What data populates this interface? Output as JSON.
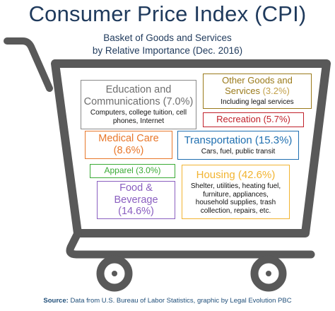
{
  "title": "Consumer Price Index (CPI)",
  "subtitle_line1": "Basket of Goods and Services",
  "subtitle_line2": "by Relative Importance (Dec. 2016)",
  "categories": {
    "education": {
      "line1": "Education and",
      "line2": "Communications (7.0%)",
      "desc1": "Computers, college tuition, cell",
      "desc2": "phones, Internet",
      "color": "#8a8a8a",
      "share": 7.0
    },
    "other": {
      "line1": "Other Goods and",
      "line2": "Services",
      "pct": "(3.2%)",
      "desc": "Including legal services",
      "color": "#9a7a1a",
      "share": 3.2
    },
    "recreation": {
      "label": "Recreation (5.7%)",
      "color": "#c0202a",
      "share": 5.7
    },
    "medical": {
      "line1": "Medical Care",
      "line2": "(8.6%)",
      "color": "#e8772a",
      "share": 8.6
    },
    "transportation": {
      "line1": "Transportation (15.3%)",
      "desc": "Cars, fuel, public transit",
      "color": "#1f6fb0",
      "share": 15.3
    },
    "apparel": {
      "label": "Apparel (3.0%)",
      "color": "#3aaa35",
      "share": 3.0
    },
    "housing": {
      "line1": "Housing (42.6%)",
      "desc1": "Shelter, utilities, heating fuel,",
      "desc2": "furniture, appliances,",
      "desc3": "household supplies, trash",
      "desc4": "collection, repairs, etc.",
      "color": "#f2b431",
      "share": 42.6
    },
    "food": {
      "line1": "Food &",
      "line2": "Beverage",
      "line3": "(14.6%)",
      "color": "#8a5fc0",
      "share": 14.6
    }
  },
  "source_label": "Source:",
  "source_text": "Data from U.S. Bureau of Labor Statistics, graphic by Legal Evolution PBC",
  "cart_color": "#595959"
}
